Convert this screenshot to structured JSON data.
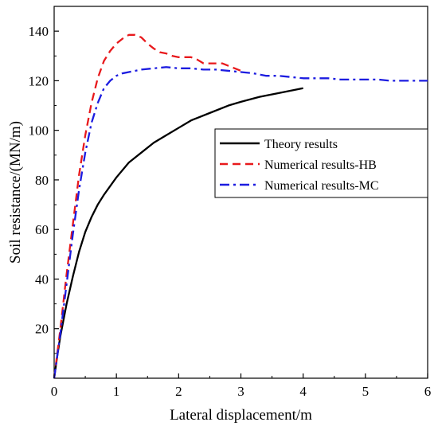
{
  "chart_data": {
    "type": "line",
    "title": "",
    "xlabel": "Lateral displacement/m",
    "ylabel": "Soil resistance/(MN/m)",
    "xlim": [
      0,
      6
    ],
    "ylim": [
      0,
      150
    ],
    "xticks": [
      "0",
      "1",
      "2",
      "3",
      "4",
      "5",
      "6"
    ],
    "yticks": [
      "20",
      "40",
      "60",
      "80",
      "100",
      "120",
      "140"
    ],
    "grid": false,
    "legend_position": "center-right",
    "series": [
      {
        "name": "Theory results",
        "color": "#000000",
        "style": "solid",
        "x": [
          0,
          0.05,
          0.1,
          0.2,
          0.3,
          0.4,
          0.5,
          0.6,
          0.7,
          0.8,
          1.0,
          1.2,
          1.4,
          1.6,
          1.8,
          2.0,
          2.2,
          2.5,
          2.8,
          3.0,
          3.3,
          3.6,
          3.8,
          4.0
        ],
        "y": [
          0,
          9,
          17,
          30,
          41,
          51,
          59,
          65,
          70,
          74,
          81,
          87,
          91,
          95,
          98,
          101,
          104,
          107,
          110,
          111.5,
          113.5,
          115,
          116,
          117
        ]
      },
      {
        "name": "Numerical results-HB",
        "color": "#e8191c",
        "style": "dashed",
        "x": [
          0,
          0.1,
          0.2,
          0.3,
          0.4,
          0.5,
          0.6,
          0.7,
          0.8,
          0.9,
          1.0,
          1.1,
          1.2,
          1.3,
          1.4,
          1.5,
          1.6,
          1.7,
          1.8,
          1.9,
          2.0,
          2.1,
          2.2,
          2.3,
          2.4,
          2.5,
          2.6,
          2.7,
          2.8,
          2.9,
          3.0
        ],
        "y": [
          0,
          20,
          42,
          62,
          82,
          98,
          111,
          121,
          128,
          132,
          135,
          137,
          138.5,
          138.5,
          137.5,
          135,
          133,
          131.5,
          131,
          130,
          129.5,
          129.5,
          129.5,
          128.5,
          127,
          127,
          127,
          127,
          126,
          125,
          124
        ]
      },
      {
        "name": "Numerical results-MC",
        "color": "#1c1ce0",
        "style": "dashdot",
        "x": [
          0,
          0.1,
          0.2,
          0.3,
          0.4,
          0.5,
          0.6,
          0.7,
          0.8,
          0.9,
          1.0,
          1.1,
          1.2,
          1.3,
          1.4,
          1.6,
          1.8,
          2.0,
          2.2,
          2.4,
          2.6,
          2.8,
          3.0,
          3.2,
          3.4,
          3.6,
          3.8,
          4.0,
          4.2,
          4.4,
          4.6,
          4.8,
          5.0,
          5.2,
          5.4,
          5.6,
          5.8,
          6.0
        ],
        "y": [
          0,
          18,
          38,
          58,
          76,
          91,
          103,
          111,
          117,
          120,
          122,
          123,
          123.5,
          124,
          124.5,
          125,
          125.5,
          125,
          125,
          124.5,
          124.5,
          124,
          123.5,
          123,
          122,
          122,
          121.5,
          121,
          121,
          121,
          120.5,
          120.5,
          120.5,
          120.5,
          120,
          120,
          120,
          120
        ]
      }
    ]
  }
}
